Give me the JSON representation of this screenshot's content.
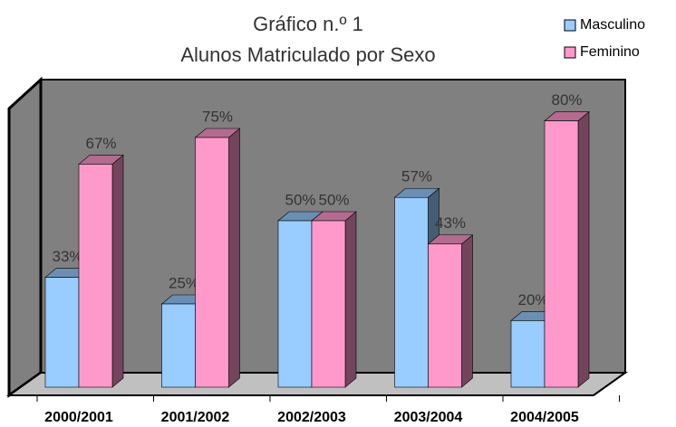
{
  "chart_data": {
    "type": "bar3d",
    "title": "Gráfico n.º 1",
    "subtitle": "Alunos Matriculado por Sexo",
    "categories": [
      "2000/2001",
      "2001/2002",
      "2002/2003",
      "2003/2004",
      "2004/2005"
    ],
    "series": [
      {
        "name": "Masculino",
        "color": "#99ccff",
        "values": [
          33,
          25,
          50,
          57,
          20
        ],
        "value_labels": [
          "33%",
          "25%",
          "50%",
          "57%",
          "20%"
        ]
      },
      {
        "name": "Feminino",
        "color": "#ff99cc",
        "values": [
          67,
          75,
          50,
          43,
          80
        ],
        "value_labels": [
          "67%",
          "75%",
          "50%",
          "43%",
          "80%"
        ]
      }
    ],
    "ylim": [
      0,
      100
    ],
    "legend": "top-right"
  }
}
